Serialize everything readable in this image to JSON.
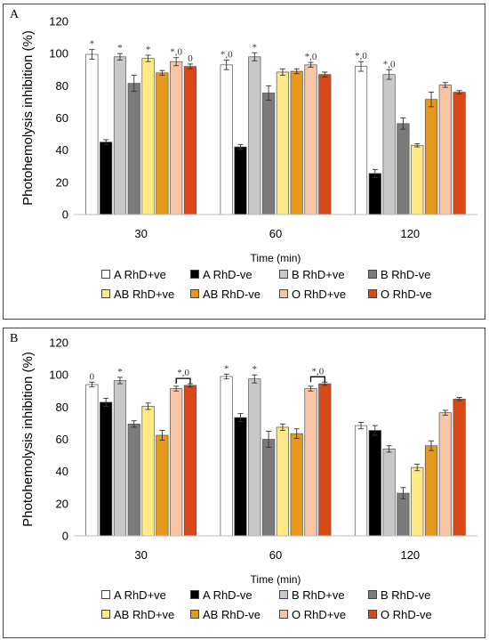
{
  "colors": {
    "A RhD+ve": "#ffffff",
    "A RhD-ve": "#000000",
    "B RhD+ve": "#c8c8c8",
    "B RhD-ve": "#7a7a7a",
    "AB RhD+ve": "#ffe987",
    "AB RhD-ve": "#e6981c",
    "O RhD+ve": "#f8c4a6",
    "O RhD-ve": "#d94815"
  },
  "chart_data": [
    {
      "panel_label": "A",
      "type": "bar",
      "xlabel": "Time (min)",
      "ylabel": "Photohemolysis inhibition (%)",
      "ylim": [
        0,
        120
      ],
      "yticks": [
        0,
        20,
        40,
        60,
        80,
        100,
        120
      ],
      "categories": [
        "30",
        "60",
        "120"
      ],
      "grid": false,
      "legend_position": "bottom",
      "series": [
        {
          "name": "A RhD+ve",
          "values": [
            99.5,
            93.0,
            92.0
          ],
          "errors": [
            3,
            3,
            3
          ]
        },
        {
          "name": "A RhD-ve",
          "values": [
            45.0,
            42.0,
            25.5
          ],
          "errors": [
            1.5,
            1.5,
            2.5
          ]
        },
        {
          "name": "B RhD+ve",
          "values": [
            98.0,
            98.0,
            87.0
          ],
          "errors": [
            2,
            2.5,
            3
          ]
        },
        {
          "name": "B RhD-ve",
          "values": [
            81.5,
            75.5,
            56.5
          ],
          "errors": [
            5,
            4.5,
            3.5
          ]
        },
        {
          "name": "AB RhD+ve",
          "values": [
            97.0,
            88.5,
            43.0
          ],
          "errors": [
            2,
            2,
            1
          ]
        },
        {
          "name": "AB RhD-ve",
          "values": [
            88.0,
            89.0,
            71.5
          ],
          "errors": [
            1.5,
            1.5,
            4.5
          ]
        },
        {
          "name": "O RhD+ve",
          "values": [
            95.0,
            93.0,
            80.5
          ],
          "errors": [
            2.5,
            1.5,
            1.5
          ]
        },
        {
          "name": "O RhD-ve",
          "values": [
            92.0,
            87.0,
            76.0
          ],
          "errors": [
            1.5,
            1.5,
            1
          ]
        }
      ],
      "annotations": [
        {
          "series": 0,
          "category": 0,
          "text": "*"
        },
        {
          "series": 2,
          "category": 0,
          "text": "*"
        },
        {
          "series": 4,
          "category": 0,
          "text": "*"
        },
        {
          "series": 6,
          "category": 0,
          "text": "*,0"
        },
        {
          "series": 7,
          "category": 0,
          "text": "0"
        },
        {
          "series": 0,
          "category": 1,
          "text": "*,0"
        },
        {
          "series": 2,
          "category": 1,
          "text": "*"
        },
        {
          "series": 6,
          "category": 1,
          "text": "*,0"
        },
        {
          "series": 0,
          "category": 2,
          "text": "*,0"
        },
        {
          "series": 2,
          "category": 2,
          "text": "*,0"
        }
      ],
      "brackets": []
    },
    {
      "panel_label": "B",
      "type": "bar",
      "xlabel": "Time (min)",
      "ylabel": "Photohemolysis inhibition (%)",
      "ylim": [
        0,
        120
      ],
      "yticks": [
        0,
        20,
        40,
        60,
        80,
        100,
        120
      ],
      "categories": [
        "30",
        "60",
        "120"
      ],
      "grid": false,
      "legend_position": "bottom",
      "series": [
        {
          "name": "A RhD+ve",
          "values": [
            94.0,
            99.0,
            68.5
          ],
          "errors": [
            1.5,
            1.5,
            2
          ]
        },
        {
          "name": "A RhD-ve",
          "values": [
            83.0,
            73.5,
            65.5
          ],
          "errors": [
            2.5,
            2.5,
            3
          ]
        },
        {
          "name": "B RhD+ve",
          "values": [
            96.5,
            97.5,
            54.0
          ],
          "errors": [
            2,
            2.5,
            2
          ]
        },
        {
          "name": "B RhD-ve",
          "values": [
            69.5,
            60.0,
            26.5
          ],
          "errors": [
            2,
            5,
            3.5
          ]
        },
        {
          "name": "AB RhD+ve",
          "values": [
            80.5,
            67.5,
            42.5
          ],
          "errors": [
            2,
            2,
            2
          ]
        },
        {
          "name": "AB RhD-ve",
          "values": [
            62.5,
            63.5,
            56.0
          ],
          "errors": [
            3,
            3,
            3
          ]
        },
        {
          "name": "O RhD+ve",
          "values": [
            91.5,
            91.5,
            76.5
          ],
          "errors": [
            1.5,
            1.5,
            1.5
          ]
        },
        {
          "name": "O RhD-ve",
          "values": [
            93.5,
            94.5,
            85.0
          ],
          "errors": [
            1,
            1,
            1
          ]
        }
      ],
      "annotations": [
        {
          "series": 0,
          "category": 0,
          "text": "0"
        },
        {
          "series": 2,
          "category": 0,
          "text": "*"
        },
        {
          "series": 0,
          "category": 1,
          "text": "*"
        },
        {
          "series": 2,
          "category": 1,
          "text": "*"
        }
      ],
      "brackets": [
        {
          "category": 0,
          "from_series": 6,
          "to_series": 7,
          "text": "*,0"
        },
        {
          "category": 1,
          "from_series": 6,
          "to_series": 7,
          "text": "*,0"
        }
      ]
    }
  ]
}
